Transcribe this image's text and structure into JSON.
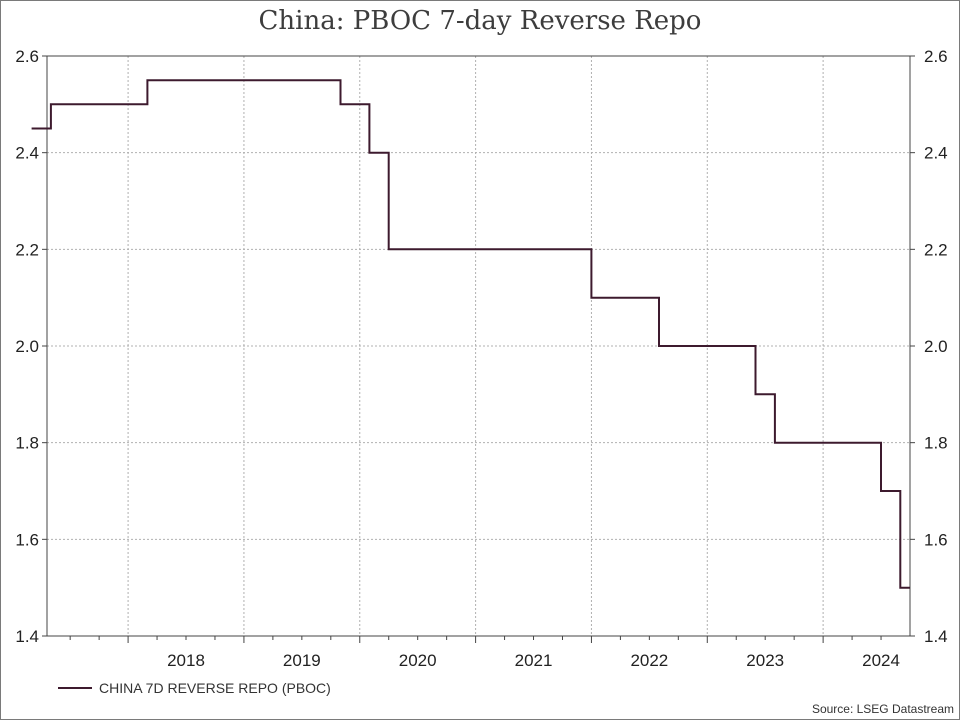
{
  "chart_data": {
    "type": "line",
    "title": "China: PBOC 7-day Reverse Repo",
    "xlabel": "",
    "ylabel": "",
    "ylim": [
      1.4,
      2.6
    ],
    "yticks": [
      "1.4",
      "1.6",
      "1.8",
      "2.0",
      "2.2",
      "2.4",
      "2.6"
    ],
    "xlim": [
      2017.3,
      2024.75
    ],
    "xticks": [
      "2018",
      "2019",
      "2020",
      "2021",
      "2022",
      "2023",
      "2024"
    ],
    "grid": true,
    "dual_y_axis": true,
    "step": true,
    "legend_position": "bottom-left",
    "series": [
      {
        "name": "CHINA 7D REVERSE REPO (PBOC)",
        "color": "#3d1a2e",
        "x": [
          "2017-03",
          "2017-05",
          "2017-12",
          "2018-03",
          "2019-11",
          "2020-02",
          "2020-04",
          "2022-01",
          "2022-08",
          "2023-06",
          "2023-08",
          "2024-07",
          "2024-09",
          "2024-10"
        ],
        "y": [
          2.45,
          2.5,
          2.5,
          2.55,
          2.5,
          2.4,
          2.2,
          2.1,
          2.0,
          1.9,
          1.8,
          1.7,
          1.5,
          1.5
        ]
      }
    ],
    "source": "Source: LSEG Datastream"
  }
}
